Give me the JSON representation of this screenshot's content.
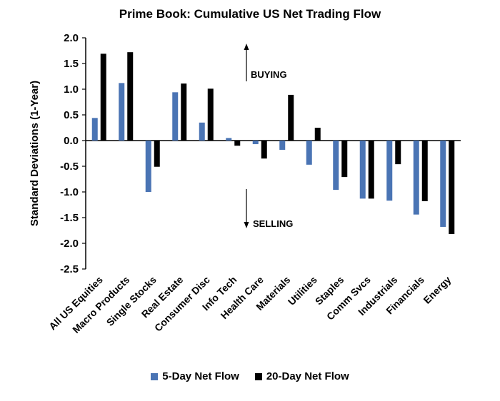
{
  "chart_data": {
    "type": "bar",
    "title": "Prime Book: Cumulative US Net Trading Flow",
    "ylabel": "Standard Deviations (1-Year)",
    "xlabel": "",
    "ylim": [
      -2.5,
      2.0
    ],
    "yticks": [
      2.0,
      1.5,
      1.0,
      0.5,
      0.0,
      -0.5,
      -1.0,
      -1.5,
      -2.0,
      -2.5
    ],
    "ytick_labels": [
      "2.0",
      "1.5",
      "1.0",
      "0.5",
      "0.0",
      "-0.5",
      "-1.0",
      "-1.5",
      "-2.0",
      "-2.5"
    ],
    "grid": false,
    "legend_position": "bottom",
    "categories": [
      "All US Equities",
      "Macro Products",
      "Single Stocks",
      "Real Estate",
      "Consumer Disc",
      "Info Tech",
      "Health Care",
      "Materials",
      "Utilities",
      "Staples",
      "Comm Svcs",
      "Industrials",
      "Financials",
      "Energy"
    ],
    "series": [
      {
        "name": "5-Day Net Flow",
        "color": "#4a74b4",
        "values": [
          0.44,
          1.12,
          -1.0,
          0.94,
          0.35,
          0.05,
          -0.07,
          -0.18,
          -0.47,
          -0.96,
          -1.13,
          -1.17,
          -1.44,
          -1.68
        ]
      },
      {
        "name": "20-Day Net Flow",
        "color": "#000000",
        "values": [
          1.69,
          1.72,
          -0.51,
          1.11,
          1.01,
          -0.1,
          -0.35,
          0.89,
          0.25,
          -0.71,
          -1.13,
          -0.46,
          -1.18,
          -1.82
        ]
      }
    ],
    "annotations": [
      {
        "text": "BUYING",
        "direction": "up"
      },
      {
        "text": "SELLING",
        "direction": "down"
      }
    ]
  }
}
